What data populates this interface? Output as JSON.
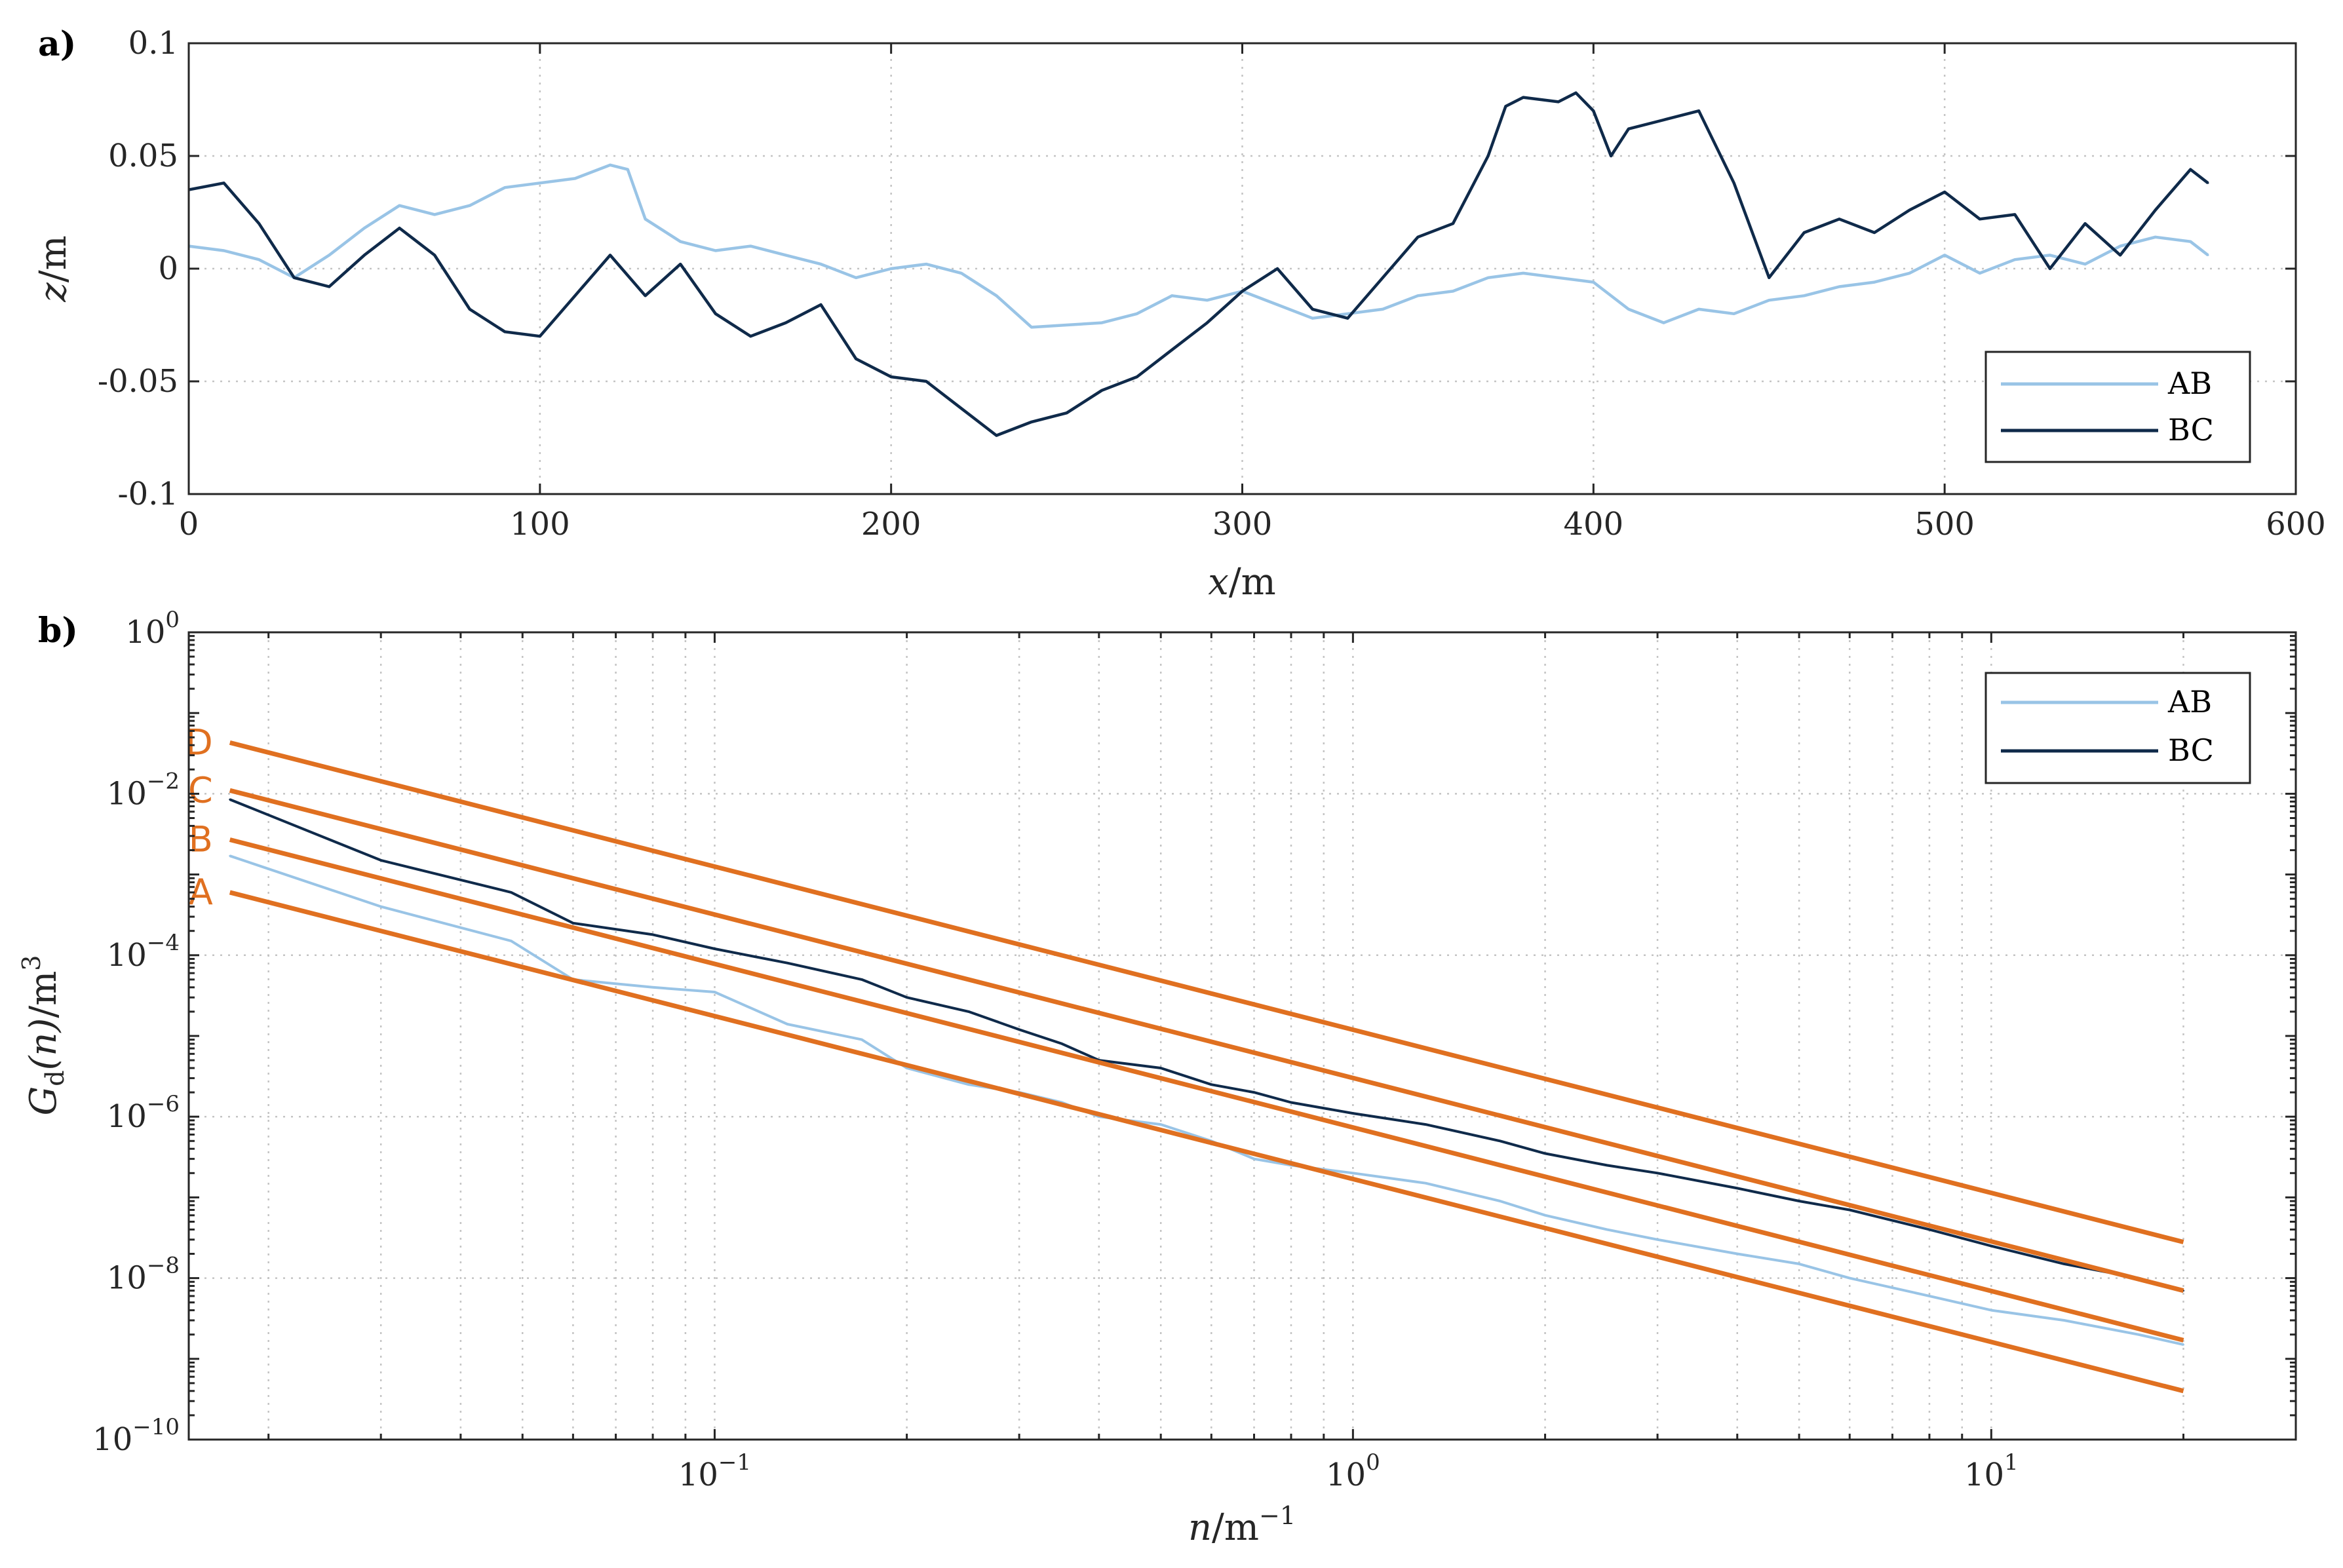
{
  "chart_data": [
    {
      "type": "line",
      "panel_label": "a)",
      "xlabel_var": "x",
      "xlabel_unit": "/m",
      "ylabel_var": "z",
      "ylabel_unit": "/m",
      "xlim": [
        0,
        600
      ],
      "ylim": [
        -0.1,
        0.1
      ],
      "xticks": [
        0,
        100,
        200,
        300,
        400,
        500,
        600
      ],
      "xtick_labels": [
        "0",
        "100",
        "200",
        "300",
        "400",
        "500",
        "600"
      ],
      "yticks": [
        -0.1,
        -0.05,
        0,
        0.05,
        0.1
      ],
      "ytick_labels": [
        "-0.1",
        "-0.05",
        "0",
        "0.05",
        "0.1"
      ],
      "grid": true,
      "legend_position": "bottom-right",
      "series": [
        {
          "name": "AB",
          "color": "#99c4e6",
          "x": [
            0,
            10,
            20,
            30,
            40,
            50,
            60,
            70,
            80,
            90,
            100,
            110,
            120,
            125,
            130,
            140,
            150,
            160,
            170,
            180,
            190,
            200,
            210,
            220,
            230,
            240,
            250,
            260,
            270,
            280,
            290,
            300,
            310,
            320,
            330,
            340,
            350,
            360,
            370,
            380,
            390,
            400,
            410,
            420,
            430,
            440,
            450,
            460,
            470,
            480,
            490,
            500,
            510,
            520,
            530,
            540,
            550,
            560,
            570,
            575
          ],
          "y": [
            0.01,
            0.008,
            0.004,
            -0.004,
            0.006,
            0.018,
            0.028,
            0.024,
            0.028,
            0.036,
            0.038,
            0.04,
            0.046,
            0.044,
            0.022,
            0.012,
            0.008,
            0.01,
            0.006,
            0.002,
            -0.004,
            0.0,
            0.002,
            -0.002,
            -0.012,
            -0.026,
            -0.025,
            -0.024,
            -0.02,
            -0.012,
            -0.014,
            -0.01,
            -0.016,
            -0.022,
            -0.02,
            -0.018,
            -0.012,
            -0.01,
            -0.004,
            -0.002,
            -0.004,
            -0.006,
            -0.018,
            -0.024,
            -0.018,
            -0.02,
            -0.014,
            -0.012,
            -0.008,
            -0.006,
            -0.002,
            0.006,
            -0.002,
            0.004,
            0.006,
            0.002,
            0.01,
            0.014,
            0.012,
            0.006
          ]
        },
        {
          "name": "BC",
          "color": "#0f2a4a",
          "x": [
            0,
            10,
            20,
            30,
            40,
            50,
            60,
            70,
            80,
            90,
            100,
            110,
            120,
            130,
            140,
            150,
            160,
            170,
            180,
            190,
            200,
            210,
            220,
            230,
            240,
            250,
            260,
            270,
            280,
            290,
            300,
            310,
            320,
            330,
            340,
            350,
            360,
            370,
            375,
            380,
            390,
            395,
            400,
            405,
            410,
            420,
            430,
            440,
            450,
            460,
            470,
            480,
            490,
            500,
            510,
            520,
            530,
            540,
            550,
            560,
            570,
            575
          ],
          "y": [
            0.035,
            0.038,
            0.02,
            -0.004,
            -0.008,
            0.006,
            0.018,
            0.006,
            -0.018,
            -0.028,
            -0.03,
            -0.012,
            0.006,
            -0.012,
            0.002,
            -0.02,
            -0.03,
            -0.024,
            -0.016,
            -0.04,
            -0.048,
            -0.05,
            -0.062,
            -0.074,
            -0.068,
            -0.064,
            -0.054,
            -0.048,
            -0.036,
            -0.024,
            -0.01,
            0.0,
            -0.018,
            -0.022,
            -0.004,
            0.014,
            0.02,
            0.05,
            0.072,
            0.076,
            0.074,
            0.078,
            0.07,
            0.05,
            0.062,
            0.066,
            0.07,
            0.038,
            -0.004,
            0.016,
            0.022,
            0.016,
            0.026,
            0.034,
            0.022,
            0.024,
            0.0,
            0.02,
            0.006,
            0.026,
            0.044,
            0.038
          ]
        }
      ]
    },
    {
      "type": "line",
      "panel_label": "b)",
      "xscale": "log",
      "yscale": "log",
      "xlabel_var": "n",
      "xlabel_unit": "/m",
      "xlabel_unit_exp": "−1",
      "ylabel_var": "G",
      "ylabel_sub": "d",
      "ylabel_arg": "(n)",
      "ylabel_unit": "/m",
      "ylabel_unit_exp": "3",
      "xlim": [
        0.015,
        30
      ],
      "ylim": [
        1e-10,
        1
      ],
      "xtick_decades": [
        -1,
        0,
        1
      ],
      "ytick_decades": [
        -10,
        -8,
        -6,
        -4,
        -2,
        0
      ],
      "tick_base": "10",
      "grid": true,
      "legend_position": "top-right",
      "series": [
        {
          "name": "AB",
          "color": "#99c4e6",
          "x": [
            0.0174,
            0.03,
            0.048,
            0.06,
            0.08,
            0.1,
            0.13,
            0.17,
            0.2,
            0.25,
            0.3,
            0.35,
            0.4,
            0.5,
            0.6,
            0.7,
            0.8,
            1.0,
            1.3,
            1.7,
            2.0,
            2.5,
            3.0,
            4.0,
            5.0,
            6.0,
            8.0,
            10.0,
            13.0,
            17.0,
            20.0
          ],
          "y": [
            0.0017,
            0.0004,
            0.00015,
            5e-05,
            4e-05,
            3.5e-05,
            1.4e-05,
            9e-06,
            4e-06,
            2.5e-06,
            2e-06,
            1.5e-06,
            1e-06,
            8e-07,
            5e-07,
            3e-07,
            2.5e-07,
            2e-07,
            1.5e-07,
            9e-08,
            6e-08,
            4e-08,
            3e-08,
            2e-08,
            1.5e-08,
            1e-08,
            6e-09,
            4e-09,
            3e-09,
            2e-09,
            1.5e-09
          ]
        },
        {
          "name": "BC",
          "color": "#0f2a4a",
          "x": [
            0.0174,
            0.03,
            0.048,
            0.06,
            0.08,
            0.1,
            0.13,
            0.17,
            0.2,
            0.25,
            0.3,
            0.35,
            0.4,
            0.5,
            0.6,
            0.7,
            0.8,
            1.0,
            1.3,
            1.7,
            2.0,
            2.5,
            3.0,
            4.0,
            5.0,
            6.0,
            8.0,
            10.0,
            13.0,
            17.0,
            20.0
          ],
          "y": [
            0.0085,
            0.0015,
            0.0006,
            0.00025,
            0.00018,
            0.00012,
            8e-05,
            5e-05,
            3e-05,
            2e-05,
            1.2e-05,
            8e-06,
            5e-06,
            4e-06,
            2.5e-06,
            2e-06,
            1.5e-06,
            1.1e-06,
            8e-07,
            5e-07,
            3.5e-07,
            2.5e-07,
            2e-07,
            1.3e-07,
            9e-08,
            7e-08,
            4e-08,
            2.5e-08,
            1.5e-08,
            1e-08,
            7e-09
          ]
        }
      ],
      "reference_lines": [
        {
          "label": "A",
          "color": "#e07020",
          "x": [
            0.0174,
            20
          ],
          "y": [
            0.0006,
            4e-10
          ]
        },
        {
          "label": "B",
          "color": "#e07020",
          "x": [
            0.0174,
            20
          ],
          "y": [
            0.0027,
            1.7e-09
          ]
        },
        {
          "label": "C",
          "color": "#e07020",
          "x": [
            0.0174,
            20
          ],
          "y": [
            0.011,
            7e-09
          ]
        },
        {
          "label": "D",
          "color": "#e07020",
          "x": [
            0.0174,
            20
          ],
          "y": [
            0.043,
            2.8e-08
          ]
        }
      ]
    }
  ]
}
